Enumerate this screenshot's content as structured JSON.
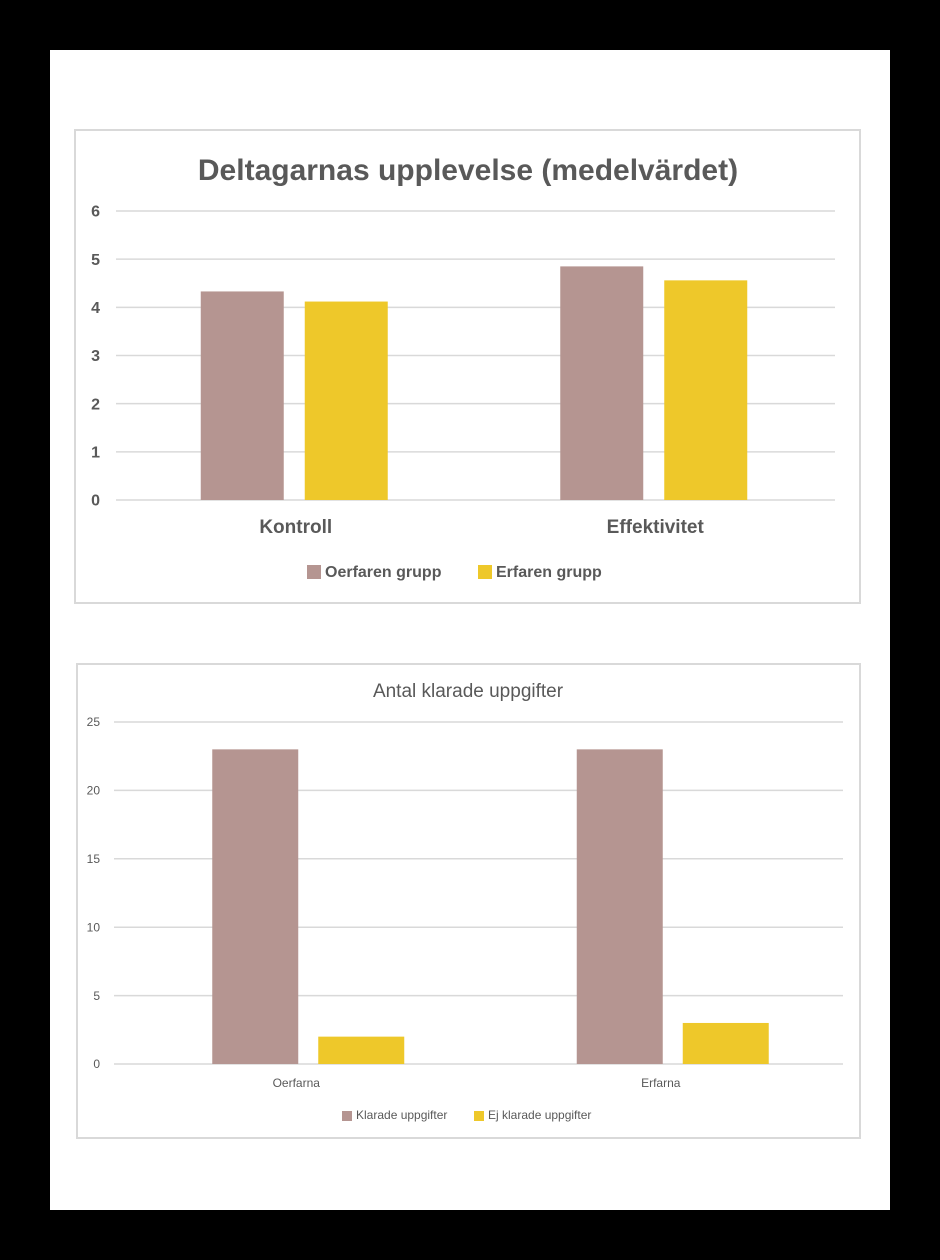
{
  "chart_data": [
    {
      "type": "bar",
      "title": "Deltagarnas upplevelse (medelvärdet)",
      "categories": [
        "Kontroll",
        "Effektivitet"
      ],
      "series": [
        {
          "name": "Oerfaren grupp",
          "values": [
            4.33,
            4.85
          ]
        },
        {
          "name": "Erfaren grupp",
          "values": [
            4.12,
            4.56
          ]
        }
      ],
      "ylim": [
        0,
        6
      ],
      "yticks": [
        "0",
        "1",
        "2",
        "3",
        "4",
        "5",
        "6"
      ],
      "grid": true,
      "legend": "bottom"
    },
    {
      "type": "bar",
      "title": "Antal klarade uppgifter",
      "categories": [
        "Oerfarna",
        "Erfarna"
      ],
      "series": [
        {
          "name": "Klarade uppgifter",
          "values": [
            23,
            23
          ]
        },
        {
          "name": "Ej klarade uppgifter",
          "values": [
            2,
            3
          ]
        }
      ],
      "ylim": [
        0,
        25
      ],
      "yticks": [
        "0",
        "5",
        "10",
        "15",
        "20",
        "25"
      ],
      "grid": true,
      "legend": "bottom"
    }
  ],
  "colors": {
    "series_1": "#b59591",
    "series_2": "#eec82a",
    "grid": "#d9d9d9",
    "text": "#595959"
  }
}
